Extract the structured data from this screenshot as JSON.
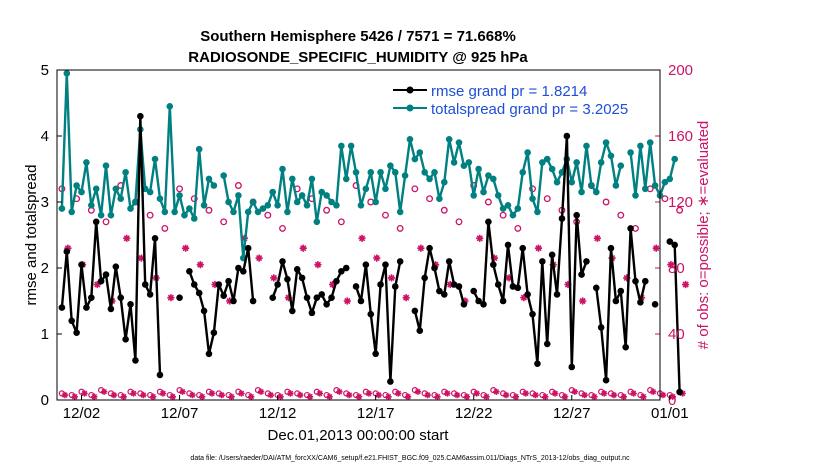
{
  "chart_data": {
    "type": "line",
    "title": "Southern Hemisphere 5426 / 7571 = 71.668%",
    "subtitle": "RADIOSONDE_SPECIFIC_HUMIDITY @ 925 hPa",
    "xlabel": "Dec.01,2013 00:00:00 start",
    "ylabel": "rmse and totalspread",
    "y2label": "# of obs: o=possible; ∗=evaluated",
    "footer": "data file: /Users/raeder/DAI/ATM_forcXX/CAM6_setup/f.e21.FHIST_BGC.f09_025.CAM6assim.011/Diags_NTrS_2013-12/obs_diag_output.nc",
    "xlim": [
      0.5,
      31.25
    ],
    "ylim": [
      0,
      5
    ],
    "y2lim": [
      0,
      200
    ],
    "xticks": [
      1.75,
      6.75,
      11.75,
      16.75,
      21.75,
      26.75,
      31.75
    ],
    "xtick_labels": [
      "12/02",
      "12/07",
      "12/12",
      "12/17",
      "12/22",
      "12/27",
      "01/01"
    ],
    "yticks": [
      0,
      1,
      2,
      3,
      4,
      5
    ],
    "y2ticks": [
      0,
      40,
      80,
      120,
      160,
      200
    ],
    "legend": [
      {
        "label": "rmse grand pr = 1.8214",
        "color": "#000000"
      },
      {
        "label": "totalspread grand pr = 3.2025",
        "color": "#008080"
      }
    ],
    "series_x_start": 0.75,
    "series_x_step": 0.25,
    "series": [
      {
        "name": "rmse",
        "axis": "left",
        "color": "#000000",
        "values": [
          1.4,
          2.25,
          1.2,
          1.02,
          2.05,
          1.4,
          1.55,
          2.7,
          1.8,
          1.9,
          1.38,
          2.02,
          1.55,
          0.92,
          1.45,
          0.6,
          4.3,
          1.75,
          1.6,
          2.45,
          0.38,
          null,
          null,
          null,
          1.55,
          null,
          1.95,
          1.75,
          1.62,
          1.35,
          0.7,
          1.02,
          1.75,
          1.58,
          1.8,
          1.5,
          2.0,
          1.95,
          2.3,
          1.5,
          null,
          null,
          null,
          1.55,
          1.75,
          2.1,
          1.83,
          1.35,
          1.98,
          1.85,
          1.55,
          1.32,
          1.55,
          1.6,
          1.45,
          1.55,
          1.8,
          1.95,
          2.0,
          null,
          1.72,
          1.5,
          2.05,
          1.3,
          0.7,
          1.75,
          2.05,
          0.28,
          1.72,
          2.1,
          null,
          null,
          1.35,
          1.05,
          1.85,
          2.3,
          2.0,
          1.65,
          1.6,
          2.1,
          1.75,
          1.72,
          1.45,
          null,
          1.65,
          1.5,
          1.45,
          2.7,
          2.05,
          1.75,
          1.5,
          2.35,
          1.72,
          1.7,
          2.3,
          1.6,
          1.3,
          0.55,
          2.1,
          0.85,
          2.2,
          1.6,
          2.75,
          4.0,
          0.5,
          2.8,
          1.9,
          2.1,
          null,
          1.7,
          1.1,
          0.3,
          2.3,
          1.5,
          1.65,
          0.8,
          2.6,
          1.8,
          1.48,
          1.8,
          null,
          1.45,
          null,
          null,
          2.4,
          2.35,
          0.12,
          null
        ],
        "marker": "asterisk"
      },
      {
        "name": "totalspread",
        "axis": "left",
        "color": "#008080",
        "values": [
          2.9,
          4.95,
          2.85,
          3.25,
          3.15,
          3.6,
          2.95,
          3.2,
          2.8,
          3.55,
          2.8,
          3.2,
          3.05,
          3.45,
          2.9,
          3.0,
          4.1,
          3.2,
          3.15,
          3.65,
          3.05,
          2.85,
          4.45,
          2.85,
          3.1,
          2.8,
          2.9,
          2.75,
          3.8,
          2.95,
          3.35,
          3.25,
          null,
          3.4,
          3.0,
          2.85,
          3.1,
          2.15,
          2.85,
          3.0,
          2.85,
          2.9,
          2.95,
          3.15,
          2.95,
          3.5,
          2.85,
          3.35,
          3.0,
          3.1,
          2.95,
          3.35,
          2.7,
          3.15,
          3.1,
          3.0,
          2.95,
          3.85,
          3.35,
          3.85,
          3.45,
          2.95,
          3.2,
          3.45,
          3.0,
          3.45,
          3.2,
          3.55,
          3.45,
          2.85,
          3.4,
          3.95,
          3.65,
          3.75,
          3.45,
          3.35,
          3.45,
          3.05,
          3.3,
          3.95,
          3.6,
          3.9,
          3.55,
          3.6,
          3.1,
          3.5,
          3.15,
          3.4,
          3.35,
          3.1,
          2.9,
          2.95,
          2.8,
          2.9,
          3.45,
          3.75,
          3.05,
          2.85,
          3.6,
          3.65,
          3.5,
          3.3,
          3.45,
          3.65,
          3.3,
          3.6,
          3.15,
          3.85,
          3.25,
          3.15,
          3.6,
          3.9,
          3.7,
          3.25,
          3.55,
          null,
          3.75,
          3.1,
          3.85,
          3.2,
          3.9,
          3.25,
          3.1,
          3.3,
          3.35,
          3.65
        ],
        "marker": "dot"
      },
      {
        "name": "obs possible",
        "axis": "right",
        "color": "#cc1366",
        "values": [
          120,
          null,
          null,
          145,
          null,
          null,
          null,
          null,
          null,
          null,
          null,
          null,
          null,
          null,
          null,
          null,
          null,
          null,
          null,
          null,
          null,
          null,
          null,
          null,
          130,
          null,
          null,
          null,
          null,
          null,
          null,
          null,
          null,
          null,
          null,
          null,
          null,
          null,
          null,
          null,
          null,
          null,
          null,
          null,
          null,
          null,
          null,
          null,
          null,
          null,
          null,
          null,
          null,
          null,
          null,
          null,
          null,
          null,
          null,
          null,
          null,
          null,
          null,
          null,
          null,
          null,
          null,
          null,
          null,
          null,
          null,
          null,
          null,
          null,
          null,
          null,
          null,
          null,
          null,
          null,
          null,
          null,
          null,
          null,
          null,
          null,
          null,
          null,
          null,
          null,
          null,
          null,
          null,
          null,
          null,
          null,
          null,
          null,
          null,
          null,
          null,
          null,
          null,
          null,
          null,
          null,
          null,
          null,
          null,
          null,
          null,
          null,
          null,
          null,
          null,
          null,
          null,
          null,
          null,
          null,
          null,
          null,
          null,
          null,
          null,
          null
        ],
        "marker": "open-circle"
      },
      {
        "name": "obs evaluated",
        "axis": "right",
        "color": "#cc1366",
        "values": [
          82,
          null,
          null,
          112,
          null,
          null,
          null,
          null,
          null,
          null,
          null,
          null,
          null,
          null,
          null,
          null,
          null,
          null,
          null,
          null,
          null,
          null,
          null,
          null,
          75,
          null,
          null,
          null,
          null,
          null,
          null,
          null,
          null,
          null,
          null,
          null,
          null,
          null,
          null,
          null,
          null,
          null,
          null,
          null,
          null,
          null,
          null,
          null,
          null,
          null,
          null,
          null,
          null,
          null,
          null,
          null,
          null,
          null,
          null,
          null,
          null,
          null,
          null,
          null,
          null,
          null,
          null,
          null,
          null,
          null,
          null,
          null,
          null,
          null,
          null,
          null,
          null,
          null,
          null,
          null,
          null,
          null,
          null,
          null,
          null,
          null,
          null,
          null,
          null,
          null,
          null,
          null,
          null,
          null,
          null,
          null,
          null,
          null,
          null,
          null,
          null,
          null,
          null,
          null,
          null,
          null,
          null,
          null,
          null,
          null,
          null,
          null,
          null,
          null,
          null,
          null,
          null,
          null,
          null,
          null,
          null,
          null,
          null,
          null,
          null,
          null
        ],
        "marker": "asterisk-marker"
      }
    ],
    "obs_cycle_possible": [
      128,
      122,
      115,
      108,
      130,
      120,
      112,
      104
    ],
    "obs_cycle_evaluated": [
      92,
      82,
      70,
      60,
      98,
      86,
      74,
      62
    ],
    "obs_low_possible": [
      4,
      3,
      5,
      3,
      6,
      4,
      3,
      5
    ],
    "obs_low_evaluated": [
      3,
      2,
      4,
      2,
      5,
      3,
      2,
      4
    ]
  }
}
